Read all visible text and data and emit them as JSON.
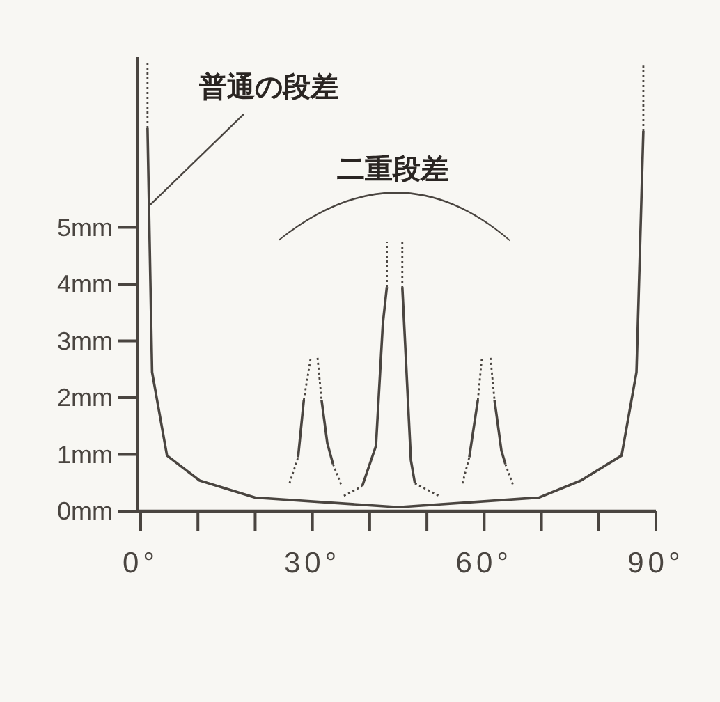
{
  "chart_data": {
    "type": "line",
    "xlim": [
      0,
      90
    ],
    "ylim": [
      0,
      8
    ],
    "xticks": [
      {
        "value": 0,
        "label": "0°"
      },
      {
        "value": 10,
        "label": null
      },
      {
        "value": 20,
        "label": null
      },
      {
        "value": 30,
        "label": "30°"
      },
      {
        "value": 40,
        "label": null
      },
      {
        "value": 50,
        "label": null
      },
      {
        "value": 60,
        "label": "60°"
      },
      {
        "value": 70,
        "label": null
      },
      {
        "value": 80,
        "label": null
      },
      {
        "value": 90,
        "label": "90°"
      }
    ],
    "yticks": [
      {
        "value": 0,
        "label": "0mm"
      },
      {
        "value": 1,
        "label": "1mm"
      },
      {
        "value": 2,
        "label": "2mm"
      },
      {
        "value": 3,
        "label": "3mm"
      },
      {
        "value": 4,
        "label": "4mm"
      },
      {
        "value": 5,
        "label": "5mm"
      }
    ],
    "grid": false,
    "series": [
      {
        "color": "#4a4540",
        "line_style": "solid",
        "x": [
          1.2,
          2.0,
          4.6,
          10.3,
          20,
          45,
          69.6,
          76.9,
          84,
          86.6,
          87.8
        ],
        "values": [
          6.75,
          2.45,
          0.98,
          0.54,
          0.24,
          0.07,
          0.24,
          0.54,
          0.98,
          2.45,
          6.7
        ]
      },
      {
        "color": "#4a4540",
        "line_style": "dotted",
        "x": [
          1.2,
          1.2
        ],
        "values": [
          6.75,
          7.9
        ]
      },
      {
        "color": "#4a4540",
        "line_style": "dotted",
        "x": [
          87.8,
          87.8
        ],
        "values": [
          6.7,
          7.85
        ]
      },
      {
        "color": "#4a4540",
        "line_style": "dotted",
        "x": [
          26.0,
          27.5
        ],
        "values": [
          0.49,
          0.95
        ]
      },
      {
        "color": "#4a4540",
        "line_style": "solid",
        "x": [
          27.5,
          28.5
        ],
        "values": [
          0.95,
          1.96
        ]
      },
      {
        "color": "#4a4540",
        "line_style": "dotted",
        "x": [
          28.5,
          29.7
        ],
        "values": [
          1.96,
          2.7
        ]
      },
      {
        "color": "#4a4540",
        "line_style": "dotted",
        "x": [
          30.9,
          31.6
        ],
        "values": [
          2.7,
          1.96
        ]
      },
      {
        "color": "#4a4540",
        "line_style": "solid",
        "x": [
          31.6,
          32.6,
          33.6
        ],
        "values": [
          1.96,
          1.2,
          0.83
        ]
      },
      {
        "color": "#4a4540",
        "line_style": "dotted",
        "x": [
          33.6,
          35.0
        ],
        "values": [
          0.83,
          0.47
        ]
      },
      {
        "color": "#4a4540",
        "line_style": "dotted",
        "x": [
          35.5,
          38.7
        ],
        "values": [
          0.27,
          0.44
        ]
      },
      {
        "color": "#4a4540",
        "line_style": "solid",
        "x": [
          38.7,
          41.1,
          42.3,
          43
        ],
        "values": [
          0.44,
          1.15,
          3.3,
          3.95
        ]
      },
      {
        "color": "#4a4540",
        "line_style": "dotted",
        "x": [
          43,
          43
        ],
        "values": [
          3.95,
          4.75
        ]
      },
      {
        "color": "#4a4540",
        "line_style": "dotted",
        "x": [
          45.7,
          45.7
        ],
        "values": [
          4.75,
          3.95
        ]
      },
      {
        "color": "#4a4540",
        "line_style": "solid",
        "x": [
          45.7,
          46,
          47.2,
          47.9
        ],
        "values": [
          3.95,
          3.35,
          0.9,
          0.49
        ]
      },
      {
        "color": "#4a4540",
        "line_style": "dotted",
        "x": [
          47.9,
          52.1
        ],
        "values": [
          0.49,
          0.27
        ]
      },
      {
        "color": "#4a4540",
        "line_style": "dotted",
        "x": [
          56.2,
          57.4
        ],
        "values": [
          0.49,
          0.95
        ]
      },
      {
        "color": "#4a4540",
        "line_style": "solid",
        "x": [
          57.4,
          58.9
        ],
        "values": [
          0.95,
          1.96
        ]
      },
      {
        "color": "#4a4540",
        "line_style": "dotted",
        "x": [
          58.9,
          59.6
        ],
        "values": [
          1.96,
          2.7
        ]
      },
      {
        "color": "#4a4540",
        "line_style": "dotted",
        "x": [
          61.1,
          61.8
        ],
        "values": [
          2.7,
          1.96
        ]
      },
      {
        "color": "#4a4540",
        "line_style": "solid",
        "x": [
          61.8,
          63.0,
          63.7
        ],
        "values": [
          1.96,
          1.07,
          0.83
        ]
      },
      {
        "color": "#4a4540",
        "line_style": "dotted",
        "x": [
          63.7,
          65.0
        ],
        "values": [
          0.83,
          0.47
        ]
      }
    ],
    "annotations": [
      {
        "text": "普通の段差",
        "x": 1.7,
        "y": 5.4
      },
      "二重段差"
    ]
  }
}
